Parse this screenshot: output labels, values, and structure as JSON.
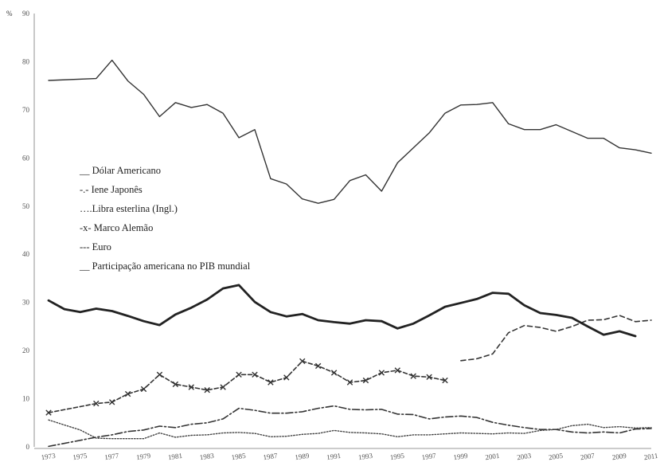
{
  "chart_data": {
    "type": "line",
    "title": "",
    "xlabel": "",
    "ylabel": "%",
    "ylim": [
      0,
      90
    ],
    "xlim": [
      1973,
      2011
    ],
    "grid": false,
    "legend_placement": "middle-left",
    "y_ticks": [
      "0",
      "10",
      "20",
      "30",
      "40",
      "50",
      "60",
      "70",
      "80",
      "90"
    ],
    "x_ticks": [
      "1973",
      "1975",
      "1977",
      "1979",
      "1981",
      "1983",
      "1985",
      "1987",
      "1989",
      "1991",
      "1993",
      "1995",
      "1997",
      "1999",
      "2001",
      "2003",
      "2005",
      "2007",
      "2009",
      "2011"
    ],
    "legend": [
      "__ Dólar Americano",
      "-.- Iene Japonês",
      "….Libra esterlina (Ingl.)",
      "-x- Marco Alemão",
      "--- Euro",
      "__ Participação americana no PIB mundial"
    ],
    "series": [
      {
        "name": "Dólar Americano",
        "style": "solid-thin",
        "color": "#333333",
        "points": [
          [
            1973,
            76.1
          ],
          [
            1976,
            76.5
          ],
          [
            1977,
            80.3
          ],
          [
            1978,
            76.0
          ],
          [
            1979,
            73.2
          ],
          [
            1980,
            68.6
          ],
          [
            1981,
            71.5
          ],
          [
            1982,
            70.5
          ],
          [
            1983,
            71.1
          ],
          [
            1984,
            69.3
          ],
          [
            1985,
            64.2
          ],
          [
            1986,
            65.9
          ],
          [
            1987,
            55.7
          ],
          [
            1988,
            54.6
          ],
          [
            1989,
            51.5
          ],
          [
            1990,
            50.6
          ],
          [
            1991,
            51.4
          ],
          [
            1992,
            55.3
          ],
          [
            1993,
            56.5
          ],
          [
            1994,
            53.1
          ],
          [
            1995,
            59.0
          ],
          [
            1996,
            62.1
          ],
          [
            1997,
            65.2
          ],
          [
            1998,
            69.3
          ],
          [
            1999,
            71.0
          ],
          [
            2000,
            71.1
          ],
          [
            2001,
            71.5
          ],
          [
            2002,
            67.1
          ],
          [
            2003,
            65.9
          ],
          [
            2004,
            65.9
          ],
          [
            2005,
            66.9
          ],
          [
            2006,
            65.5
          ],
          [
            2007,
            64.1
          ],
          [
            2008,
            64.1
          ],
          [
            2009,
            62.1
          ],
          [
            2010,
            61.7
          ],
          [
            2011,
            61.0
          ]
        ]
      },
      {
        "name": "Iene Japonês",
        "style": "dash-dot",
        "color": "#333333",
        "points": [
          [
            1973,
            0.1
          ],
          [
            1976,
            2.0
          ],
          [
            1977,
            2.5
          ],
          [
            1978,
            3.2
          ],
          [
            1979,
            3.5
          ],
          [
            1980,
            4.3
          ],
          [
            1981,
            4.0
          ],
          [
            1982,
            4.7
          ],
          [
            1983,
            5.0
          ],
          [
            1984,
            5.8
          ],
          [
            1985,
            8.0
          ],
          [
            1986,
            7.6
          ],
          [
            1987,
            7.0
          ],
          [
            1988,
            7.0
          ],
          [
            1989,
            7.3
          ],
          [
            1990,
            8.0
          ],
          [
            1991,
            8.5
          ],
          [
            1992,
            7.8
          ],
          [
            1993,
            7.7
          ],
          [
            1994,
            7.8
          ],
          [
            1995,
            6.8
          ],
          [
            1996,
            6.7
          ],
          [
            1997,
            5.8
          ],
          [
            1998,
            6.2
          ],
          [
            1999,
            6.4
          ],
          [
            2000,
            6.1
          ],
          [
            2001,
            5.1
          ],
          [
            2002,
            4.5
          ],
          [
            2003,
            4.0
          ],
          [
            2004,
            3.6
          ],
          [
            2005,
            3.6
          ],
          [
            2006,
            3.1
          ],
          [
            2007,
            2.9
          ],
          [
            2008,
            3.1
          ],
          [
            2009,
            2.9
          ],
          [
            2010,
            3.7
          ],
          [
            2011,
            3.8
          ]
        ]
      },
      {
        "name": "Libra esterlina (Ingl.)",
        "style": "dotted",
        "color": "#444444",
        "points": [
          [
            1973,
            5.6
          ],
          [
            1975,
            3.5
          ],
          [
            1976,
            1.8
          ],
          [
            1977,
            1.7
          ],
          [
            1978,
            1.7
          ],
          [
            1979,
            1.7
          ],
          [
            1980,
            2.9
          ],
          [
            1981,
            2.0
          ],
          [
            1982,
            2.4
          ],
          [
            1983,
            2.5
          ],
          [
            1984,
            2.9
          ],
          [
            1985,
            3.0
          ],
          [
            1986,
            2.8
          ],
          [
            1987,
            2.1
          ],
          [
            1988,
            2.2
          ],
          [
            1989,
            2.6
          ],
          [
            1990,
            2.8
          ],
          [
            1991,
            3.4
          ],
          [
            1992,
            3.0
          ],
          [
            1993,
            2.9
          ],
          [
            1994,
            2.7
          ],
          [
            1995,
            2.1
          ],
          [
            1996,
            2.5
          ],
          [
            1997,
            2.5
          ],
          [
            1998,
            2.7
          ],
          [
            1999,
            2.9
          ],
          [
            2000,
            2.8
          ],
          [
            2001,
            2.7
          ],
          [
            2002,
            2.9
          ],
          [
            2003,
            2.8
          ],
          [
            2004,
            3.4
          ],
          [
            2005,
            3.6
          ],
          [
            2006,
            4.4
          ],
          [
            2007,
            4.7
          ],
          [
            2008,
            4.0
          ],
          [
            2009,
            4.2
          ],
          [
            2010,
            3.9
          ],
          [
            2011,
            4.0
          ]
        ]
      },
      {
        "name": "Marco Alemão",
        "style": "dashed-x",
        "color": "#333333",
        "points": [
          [
            1973,
            7.1
          ],
          [
            1976,
            9.0
          ],
          [
            1977,
            9.3
          ],
          [
            1978,
            11.0
          ],
          [
            1979,
            12.0
          ],
          [
            1980,
            15.0
          ],
          [
            1981,
            13.0
          ],
          [
            1982,
            12.4
          ],
          [
            1983,
            11.8
          ],
          [
            1984,
            12.4
          ],
          [
            1985,
            15.0
          ],
          [
            1986,
            15.0
          ],
          [
            1987,
            13.4
          ],
          [
            1988,
            14.4
          ],
          [
            1989,
            17.8
          ],
          [
            1990,
            16.8
          ],
          [
            1991,
            15.4
          ],
          [
            1992,
            13.4
          ],
          [
            1993,
            13.8
          ],
          [
            1994,
            15.4
          ],
          [
            1995,
            15.9
          ],
          [
            1996,
            14.7
          ],
          [
            1997,
            14.5
          ],
          [
            1998,
            13.8
          ]
        ]
      },
      {
        "name": "Euro",
        "style": "dashed",
        "color": "#333333",
        "points": [
          [
            1999,
            17.9
          ],
          [
            2000,
            18.3
          ],
          [
            2001,
            19.3
          ],
          [
            2002,
            23.7
          ],
          [
            2003,
            25.2
          ],
          [
            2004,
            24.8
          ],
          [
            2005,
            24.0
          ],
          [
            2006,
            25.0
          ],
          [
            2007,
            26.3
          ],
          [
            2008,
            26.4
          ],
          [
            2009,
            27.3
          ],
          [
            2010,
            26.0
          ],
          [
            2011,
            26.3
          ]
        ]
      },
      {
        "name": "Participação americana no PIB mundial",
        "style": "solid-thick",
        "color": "#222222",
        "points": [
          [
            1973,
            30.4
          ],
          [
            1974,
            28.6
          ],
          [
            1975,
            28.0
          ],
          [
            1976,
            28.7
          ],
          [
            1977,
            28.2
          ],
          [
            1978,
            27.2
          ],
          [
            1979,
            26.1
          ],
          [
            1980,
            25.3
          ],
          [
            1981,
            27.5
          ],
          [
            1982,
            28.9
          ],
          [
            1983,
            30.6
          ],
          [
            1984,
            32.9
          ],
          [
            1985,
            33.6
          ],
          [
            1986,
            30.1
          ],
          [
            1987,
            28.0
          ],
          [
            1988,
            27.1
          ],
          [
            1989,
            27.6
          ],
          [
            1990,
            26.3
          ],
          [
            1991,
            25.9
          ],
          [
            1992,
            25.6
          ],
          [
            1993,
            26.3
          ],
          [
            1994,
            26.1
          ],
          [
            1995,
            24.6
          ],
          [
            1996,
            25.6
          ],
          [
            1997,
            27.3
          ],
          [
            1998,
            29.1
          ],
          [
            1999,
            29.9
          ],
          [
            2000,
            30.7
          ],
          [
            2001,
            32.0
          ],
          [
            2002,
            31.8
          ],
          [
            2003,
            29.4
          ],
          [
            2004,
            27.8
          ],
          [
            2005,
            27.4
          ],
          [
            2006,
            26.8
          ],
          [
            2007,
            25.0
          ],
          [
            2008,
            23.3
          ],
          [
            2009,
            24.0
          ],
          [
            2010,
            23.0
          ]
        ]
      }
    ]
  }
}
